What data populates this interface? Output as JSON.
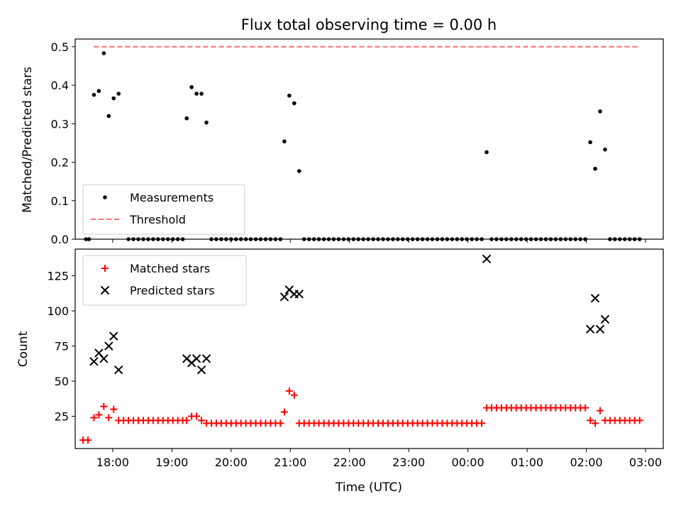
{
  "chart_data": [
    {
      "type": "scatter",
      "title": "Flux total observing time = 0.00 h",
      "xlabel": "",
      "ylabel": "Matched/Predicted stars",
      "xlim": [
        "17:22",
        "03:18"
      ],
      "ylim": [
        0,
        0.52
      ],
      "x_tick_labels": [
        "18:00",
        "19:00",
        "20:00",
        "21:00",
        "22:00",
        "23:00",
        "00:00",
        "01:00",
        "02:00",
        "03:00"
      ],
      "y_ticks": [
        "0.0",
        "0.1",
        "0.2",
        "0.3",
        "0.4",
        "0.5"
      ],
      "legend_position": "bottom-left",
      "series": [
        {
          "name": "Measurements",
          "color": "#000000",
          "marker": "dot",
          "points": [
            [
              "17:33",
              0
            ],
            [
              "17:36",
              0
            ],
            [
              "17:41",
              0.375
            ],
            [
              "17:46",
              0.385
            ],
            [
              "17:51",
              0.483
            ],
            [
              "17:56",
              0.32
            ],
            [
              "18:01",
              0.366
            ],
            [
              "18:06",
              0.378
            ],
            [
              "18:16",
              0
            ],
            [
              "18:21",
              0
            ],
            [
              "18:26",
              0
            ],
            [
              "18:31",
              0
            ],
            [
              "18:36",
              0
            ],
            [
              "18:41",
              0
            ],
            [
              "18:46",
              0
            ],
            [
              "18:51",
              0
            ],
            [
              "18:56",
              0
            ],
            [
              "19:01",
              0
            ],
            [
              "19:06",
              0
            ],
            [
              "19:11",
              0
            ],
            [
              "19:15",
              0.314
            ],
            [
              "19:20",
              0.395
            ],
            [
              "19:25",
              0.378
            ],
            [
              "19:30",
              0.378
            ],
            [
              "19:35",
              0.303
            ],
            [
              "19:40",
              0
            ],
            [
              "19:45",
              0
            ],
            [
              "19:50",
              0
            ],
            [
              "19:55",
              0
            ],
            [
              "20:00",
              0
            ],
            [
              "20:05",
              0
            ],
            [
              "20:10",
              0
            ],
            [
              "20:15",
              0
            ],
            [
              "20:20",
              0
            ],
            [
              "20:25",
              0
            ],
            [
              "20:30",
              0
            ],
            [
              "20:35",
              0
            ],
            [
              "20:40",
              0
            ],
            [
              "20:45",
              0
            ],
            [
              "20:50",
              0
            ],
            [
              "20:54",
              0.254
            ],
            [
              "20:59",
              0.373
            ],
            [
              "21:04",
              0.353
            ],
            [
              "21:09",
              0.177
            ],
            [
              "21:14",
              0
            ],
            [
              "21:19",
              0
            ],
            [
              "21:24",
              0
            ],
            [
              "21:29",
              0
            ],
            [
              "21:34",
              0
            ],
            [
              "21:39",
              0
            ],
            [
              "21:44",
              0
            ],
            [
              "21:49",
              0
            ],
            [
              "21:54",
              0
            ],
            [
              "21:59",
              0
            ],
            [
              "22:04",
              0
            ],
            [
              "22:09",
              0
            ],
            [
              "22:14",
              0
            ],
            [
              "22:19",
              0
            ],
            [
              "22:24",
              0
            ],
            [
              "22:29",
              0
            ],
            [
              "22:34",
              0
            ],
            [
              "22:39",
              0
            ],
            [
              "22:44",
              0
            ],
            [
              "22:49",
              0
            ],
            [
              "22:54",
              0
            ],
            [
              "22:59",
              0
            ],
            [
              "23:04",
              0
            ],
            [
              "23:09",
              0
            ],
            [
              "23:14",
              0
            ],
            [
              "23:19",
              0
            ],
            [
              "23:24",
              0
            ],
            [
              "23:29",
              0
            ],
            [
              "23:34",
              0
            ],
            [
              "23:39",
              0
            ],
            [
              "23:44",
              0
            ],
            [
              "23:49",
              0
            ],
            [
              "23:54",
              0
            ],
            [
              "23:59",
              0
            ],
            [
              "00:04",
              0
            ],
            [
              "00:09",
              0
            ],
            [
              "00:14",
              0
            ],
            [
              "00:19",
              0.226
            ],
            [
              "00:24",
              0
            ],
            [
              "00:29",
              0
            ],
            [
              "00:34",
              0
            ],
            [
              "00:39",
              0
            ],
            [
              "00:44",
              0
            ],
            [
              "00:49",
              0
            ],
            [
              "00:54",
              0
            ],
            [
              "00:59",
              0
            ],
            [
              "01:04",
              0
            ],
            [
              "01:09",
              0
            ],
            [
              "01:14",
              0
            ],
            [
              "01:19",
              0
            ],
            [
              "01:24",
              0
            ],
            [
              "01:29",
              0
            ],
            [
              "01:34",
              0
            ],
            [
              "01:39",
              0
            ],
            [
              "01:44",
              0
            ],
            [
              "01:49",
              0
            ],
            [
              "01:54",
              0
            ],
            [
              "01:59",
              0
            ],
            [
              "02:04",
              0.252
            ],
            [
              "02:09",
              0.183
            ],
            [
              "02:14",
              0.332
            ],
            [
              "02:19",
              0.233
            ],
            [
              "02:24",
              0
            ],
            [
              "02:29",
              0
            ],
            [
              "02:34",
              0
            ],
            [
              "02:39",
              0
            ],
            [
              "02:44",
              0
            ],
            [
              "02:49",
              0
            ],
            [
              "02:54",
              0
            ]
          ]
        },
        {
          "name": "Threshold",
          "color": "#ff6b6b",
          "style": "dashed",
          "points": [
            [
              "17:41",
              0.5
            ],
            [
              "02:54",
              0.5
            ]
          ]
        }
      ]
    },
    {
      "type": "scatter",
      "title": "",
      "xlabel": "Time (UTC)",
      "ylabel": "Count",
      "xlim": [
        "17:22",
        "03:18"
      ],
      "ylim": [
        2,
        144
      ],
      "x_tick_labels": [
        "18:00",
        "19:00",
        "20:00",
        "21:00",
        "22:00",
        "23:00",
        "00:00",
        "01:00",
        "02:00",
        "03:00"
      ],
      "y_ticks": [
        "25",
        "50",
        "75",
        "100",
        "125"
      ],
      "legend_position": "top-left",
      "series": [
        {
          "name": "Matched stars",
          "color": "#ff0000",
          "marker": "plus",
          "points": [
            [
              "17:30",
              8
            ],
            [
              "17:35",
              8
            ],
            [
              "17:41",
              24
            ],
            [
              "17:46",
              26
            ],
            [
              "17:51",
              32
            ],
            [
              "17:56",
              24
            ],
            [
              "18:01",
              30
            ],
            [
              "18:06",
              22
            ],
            [
              "18:11",
              22
            ],
            [
              "18:16",
              22
            ],
            [
              "18:21",
              22
            ],
            [
              "18:26",
              22
            ],
            [
              "18:31",
              22
            ],
            [
              "18:36",
              22
            ],
            [
              "18:41",
              22
            ],
            [
              "18:46",
              22
            ],
            [
              "18:51",
              22
            ],
            [
              "18:56",
              22
            ],
            [
              "19:01",
              22
            ],
            [
              "19:06",
              22
            ],
            [
              "19:11",
              22
            ],
            [
              "19:15",
              22
            ],
            [
              "19:20",
              25
            ],
            [
              "19:25",
              25
            ],
            [
              "19:30",
              22
            ],
            [
              "19:35",
              20
            ],
            [
              "19:40",
              20
            ],
            [
              "19:45",
              20
            ],
            [
              "19:50",
              20
            ],
            [
              "19:55",
              20
            ],
            [
              "20:00",
              20
            ],
            [
              "20:05",
              20
            ],
            [
              "20:10",
              20
            ],
            [
              "20:15",
              20
            ],
            [
              "20:20",
              20
            ],
            [
              "20:25",
              20
            ],
            [
              "20:30",
              20
            ],
            [
              "20:35",
              20
            ],
            [
              "20:40",
              20
            ],
            [
              "20:45",
              20
            ],
            [
              "20:50",
              20
            ],
            [
              "20:54",
              28
            ],
            [
              "20:59",
              43
            ],
            [
              "21:04",
              40
            ],
            [
              "21:09",
              20
            ],
            [
              "21:14",
              20
            ],
            [
              "21:19",
              20
            ],
            [
              "21:24",
              20
            ],
            [
              "21:29",
              20
            ],
            [
              "21:34",
              20
            ],
            [
              "21:39",
              20
            ],
            [
              "21:44",
              20
            ],
            [
              "21:49",
              20
            ],
            [
              "21:54",
              20
            ],
            [
              "21:59",
              20
            ],
            [
              "22:04",
              20
            ],
            [
              "22:09",
              20
            ],
            [
              "22:14",
              20
            ],
            [
              "22:19",
              20
            ],
            [
              "22:24",
              20
            ],
            [
              "22:29",
              20
            ],
            [
              "22:34",
              20
            ],
            [
              "22:39",
              20
            ],
            [
              "22:44",
              20
            ],
            [
              "22:49",
              20
            ],
            [
              "22:54",
              20
            ],
            [
              "22:59",
              20
            ],
            [
              "23:04",
              20
            ],
            [
              "23:09",
              20
            ],
            [
              "23:14",
              20
            ],
            [
              "23:19",
              20
            ],
            [
              "23:24",
              20
            ],
            [
              "23:29",
              20
            ],
            [
              "23:34",
              20
            ],
            [
              "23:39",
              20
            ],
            [
              "23:44",
              20
            ],
            [
              "23:49",
              20
            ],
            [
              "23:54",
              20
            ],
            [
              "23:59",
              20
            ],
            [
              "00:04",
              20
            ],
            [
              "00:09",
              20
            ],
            [
              "00:14",
              20
            ],
            [
              "00:19",
              31
            ],
            [
              "00:24",
              31
            ],
            [
              "00:29",
              31
            ],
            [
              "00:34",
              31
            ],
            [
              "00:39",
              31
            ],
            [
              "00:44",
              31
            ],
            [
              "00:49",
              31
            ],
            [
              "00:54",
              31
            ],
            [
              "00:59",
              31
            ],
            [
              "01:04",
              31
            ],
            [
              "01:09",
              31
            ],
            [
              "01:14",
              31
            ],
            [
              "01:19",
              31
            ],
            [
              "01:24",
              31
            ],
            [
              "01:29",
              31
            ],
            [
              "01:34",
              31
            ],
            [
              "01:39",
              31
            ],
            [
              "01:44",
              31
            ],
            [
              "01:49",
              31
            ],
            [
              "01:54",
              31
            ],
            [
              "01:59",
              31
            ],
            [
              "02:04",
              22
            ],
            [
              "02:09",
              20
            ],
            [
              "02:14",
              29
            ],
            [
              "02:19",
              22
            ],
            [
              "02:24",
              22
            ],
            [
              "02:29",
              22
            ],
            [
              "02:34",
              22
            ],
            [
              "02:39",
              22
            ],
            [
              "02:44",
              22
            ],
            [
              "02:49",
              22
            ],
            [
              "02:54",
              22
            ]
          ]
        },
        {
          "name": "Predicted stars",
          "color": "#000000",
          "marker": "x",
          "points": [
            [
              "17:41",
              64
            ],
            [
              "17:46",
              70
            ],
            [
              "17:51",
              66
            ],
            [
              "17:56",
              75
            ],
            [
              "18:01",
              82
            ],
            [
              "18:06",
              58
            ],
            [
              "19:15",
              66
            ],
            [
              "19:20",
              63
            ],
            [
              "19:25",
              66
            ],
            [
              "19:30",
              58
            ],
            [
              "19:35",
              66
            ],
            [
              "20:54",
              110
            ],
            [
              "20:59",
              115
            ],
            [
              "21:04",
              112
            ],
            [
              "21:09",
              112
            ],
            [
              "00:19",
              137
            ],
            [
              "02:04",
              87
            ],
            [
              "02:09",
              109
            ],
            [
              "02:14",
              87
            ],
            [
              "02:19",
              94
            ]
          ]
        }
      ]
    }
  ]
}
